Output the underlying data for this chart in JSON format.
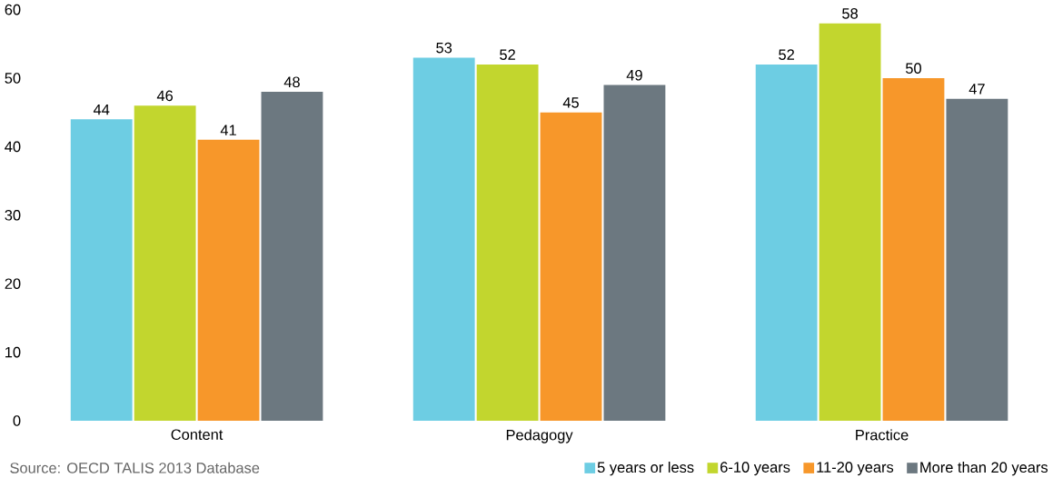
{
  "chart_data": {
    "type": "bar",
    "categories": [
      "Content",
      "Pedagogy",
      "Practice"
    ],
    "series": [
      {
        "name": "5 years or less",
        "color": "#6dcde3",
        "values": [
          44,
          53,
          52
        ]
      },
      {
        "name": "6-10 years",
        "color": "#c2d62e",
        "values": [
          46,
          52,
          58
        ]
      },
      {
        "name": "11-20 years",
        "color": "#f7972a",
        "values": [
          41,
          45,
          50
        ]
      },
      {
        "name": "More than 20 years",
        "color": "#6c7880",
        "values": [
          48,
          49,
          47
        ]
      }
    ],
    "ylim": [
      0,
      60
    ],
    "yticks": [
      0,
      10,
      20,
      30,
      40,
      50,
      60
    ],
    "data_labels": true,
    "legend": "bottom right",
    "grid": false,
    "annotations": [
      "Source:   OECD TALIS 2013 Database"
    ]
  }
}
